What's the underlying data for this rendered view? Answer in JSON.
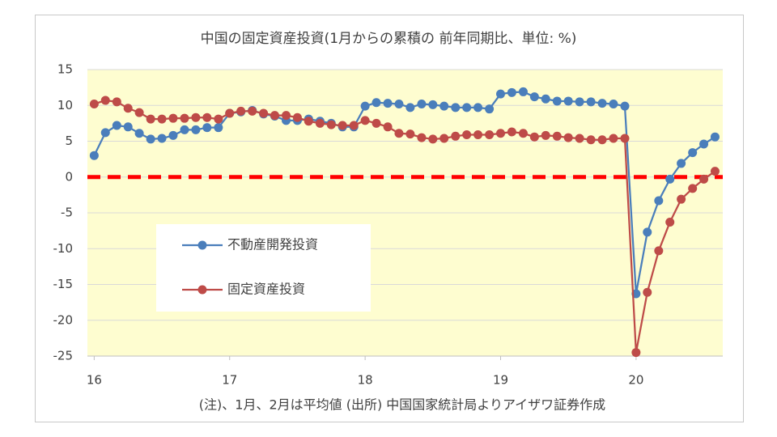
{
  "chart_data": {
    "type": "line",
    "title": "中国の固定資産投資(1月からの累積の 前年同期比、単位: %)",
    "note": "(注)、1月、2月は平均値 (出所) 中国国家統計局よりアイザワ証券作成",
    "x": [
      16,
      16.083,
      16.167,
      16.25,
      16.333,
      16.417,
      16.5,
      16.583,
      16.667,
      16.75,
      16.833,
      16.917,
      17,
      17.083,
      17.167,
      17.25,
      17.333,
      17.417,
      17.5,
      17.583,
      17.667,
      17.75,
      17.833,
      17.917,
      18,
      18.083,
      18.167,
      18.25,
      18.333,
      18.417,
      18.5,
      18.583,
      18.667,
      18.75,
      18.833,
      18.917,
      19,
      19.083,
      19.167,
      19.25,
      19.333,
      19.417,
      19.5,
      19.583,
      19.667,
      19.75,
      19.833,
      19.917,
      20,
      20.083,
      20.167,
      20.25,
      20.333,
      20.417,
      20.5,
      20.583
    ],
    "series": [
      {
        "name": "不動産開発投資",
        "color": "#4a7ebb",
        "values": [
          3.0,
          6.2,
          7.2,
          7.0,
          6.1,
          5.3,
          5.4,
          5.8,
          6.6,
          6.6,
          6.9,
          6.9,
          8.9,
          9.1,
          9.3,
          8.8,
          8.5,
          7.9,
          7.9,
          8.1,
          7.8,
          7.5,
          7.0,
          7.0,
          9.9,
          10.4,
          10.3,
          10.2,
          9.7,
          10.2,
          10.1,
          9.9,
          9.7,
          9.7,
          9.7,
          9.5,
          11.6,
          11.8,
          11.9,
          11.2,
          10.9,
          10.6,
          10.6,
          10.5,
          10.5,
          10.3,
          10.2,
          9.9,
          -16.3,
          -7.7,
          -3.3,
          -0.3,
          1.9,
          3.4,
          4.6,
          5.6
        ]
      },
      {
        "name": "固定資産投資",
        "color": "#be4b48",
        "values": [
          10.2,
          10.7,
          10.5,
          9.6,
          9.0,
          8.1,
          8.1,
          8.2,
          8.2,
          8.3,
          8.3,
          8.1,
          8.9,
          9.2,
          9.2,
          8.9,
          8.6,
          8.6,
          8.3,
          7.8,
          7.5,
          7.3,
          7.2,
          7.2,
          7.9,
          7.5,
          7.0,
          6.1,
          6.0,
          5.5,
          5.3,
          5.4,
          5.7,
          5.9,
          5.9,
          5.9,
          6.1,
          6.3,
          6.1,
          5.6,
          5.8,
          5.7,
          5.5,
          5.4,
          5.2,
          5.2,
          5.4,
          5.4,
          -24.5,
          -16.1,
          -10.3,
          -6.3,
          -3.1,
          -1.6,
          -0.3,
          0.8
        ]
      }
    ],
    "xlim": [
      15.95,
      20.64
    ],
    "xticks": [
      16,
      17,
      18,
      19,
      20
    ],
    "ylim": [
      -25,
      15
    ],
    "yticks": [
      -25,
      -20,
      -15,
      -10,
      -5,
      0,
      5,
      10,
      15
    ],
    "grid": true,
    "background": "#fefdd0",
    "zero_line": {
      "color": "#ff0000",
      "dashed": true
    },
    "legend": "lower-left"
  }
}
